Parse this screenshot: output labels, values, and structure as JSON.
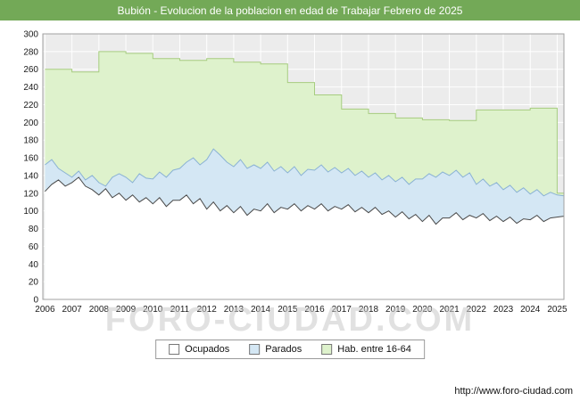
{
  "colors": {
    "title_bar_bg": "#73a957",
    "url_text": "#111111",
    "axis_text": "#1a1a1a",
    "plot_border": "#a0a0a0"
  },
  "watermark": "FORO-CIUDAD.COM",
  "footer": {
    "url": "http://www.foro-ciudad.com"
  },
  "chart_data": {
    "type": "area",
    "title": "Bubión - Evolucion de la poblacion en edad de Trabajar Febrero de 2025",
    "xlabel": "",
    "ylabel": "",
    "ylim": [
      0,
      300
    ],
    "ytick_step": 20,
    "xlim": [
      2005.92,
      2025.25
    ],
    "xticks": [
      2006,
      2007,
      2008,
      2009,
      2010,
      2011,
      2012,
      2013,
      2014,
      2015,
      2016,
      2017,
      2018,
      2019,
      2020,
      2021,
      2022,
      2023,
      2024,
      2025
    ],
    "grid": true,
    "plot_bg": "#ececec",
    "grid_color": "#ffffff",
    "legend_position": "bottom",
    "draw_order": [
      2,
      1,
      0
    ],
    "series": [
      {
        "name": "Ocupados",
        "step": false,
        "x_start": 2006,
        "x_step": 0.25,
        "fill": "#ffffff",
        "stroke": "#4a4a4a",
        "values": [
          122,
          130,
          135,
          128,
          132,
          138,
          128,
          124,
          118,
          125,
          115,
          120,
          112,
          118,
          110,
          115,
          108,
          115,
          105,
          112,
          112,
          118,
          108,
          114,
          102,
          110,
          100,
          106,
          98,
          105,
          95,
          102,
          100,
          108,
          98,
          104,
          102,
          108,
          100,
          106,
          102,
          108,
          100,
          105,
          102,
          107,
          99,
          104,
          98,
          104,
          96,
          100,
          93,
          99,
          91,
          96,
          88,
          95,
          85,
          92,
          92,
          98,
          90,
          95,
          92,
          97,
          89,
          94,
          88,
          93,
          86,
          91,
          90,
          95,
          88,
          92,
          93,
          94
        ]
      },
      {
        "name": "Parados",
        "step": false,
        "x_start": 2006,
        "x_step": 0.25,
        "fill": "#d4e7f4",
        "stroke": "#8ab2d4",
        "values": [
          152,
          158,
          148,
          143,
          138,
          145,
          135,
          140,
          132,
          128,
          138,
          142,
          138,
          132,
          142,
          137,
          136,
          144,
          138,
          146,
          148,
          155,
          160,
          152,
          158,
          170,
          163,
          155,
          150,
          158,
          148,
          152,
          148,
          155,
          145,
          150,
          143,
          150,
          140,
          147,
          146,
          152,
          144,
          149,
          143,
          148,
          140,
          145,
          138,
          143,
          135,
          140,
          133,
          138,
          130,
          136,
          136,
          142,
          138,
          144,
          140,
          146,
          138,
          143,
          130,
          136,
          128,
          132,
          124,
          129,
          121,
          126,
          119,
          124,
          117,
          121,
          118,
          117
        ]
      },
      {
        "name": "Hab. entre 16-64",
        "step": true,
        "years": [
          2006,
          2007,
          2008,
          2009,
          2010,
          2011,
          2012,
          2013,
          2014,
          2015,
          2016,
          2017,
          2018,
          2019,
          2020,
          2021,
          2022,
          2023,
          2024,
          2025
        ],
        "fill": "#def2cc",
        "stroke": "#a6cc7f",
        "values": [
          260,
          257,
          280,
          278,
          272,
          270,
          272,
          268,
          266,
          245,
          231,
          215,
          210,
          205,
          203,
          202,
          214,
          214,
          216,
          120
        ]
      }
    ]
  }
}
